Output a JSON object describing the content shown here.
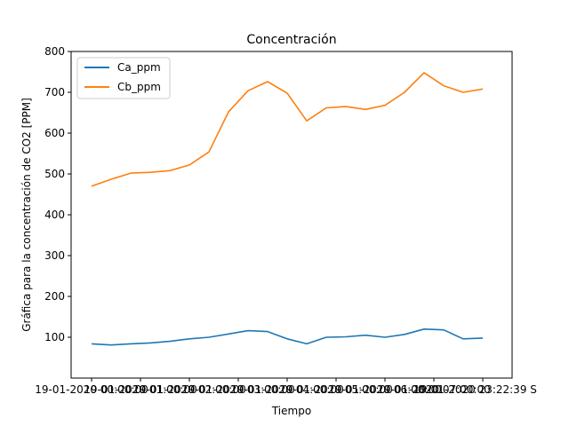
{
  "chart_data": {
    "type": "line",
    "title": "Concentración",
    "xlabel": "Tiempo",
    "ylabel": "Gráfica para la concentración de CO2 [PPM]",
    "ylim": [
      0,
      800
    ],
    "yticks": [
      100,
      200,
      300,
      400,
      500,
      600,
      700,
      800
    ],
    "xticks": [
      "19-01-2020 00:00:00",
      "19-01-2020 01:00:00",
      "19-01-2020 02:00:00",
      "19-01-2020 03:00:00",
      "19-01-2020 04:00:00",
      "19-01-2020 05:00:00",
      "19-01-2020 06:00:00",
      "19-01-2020 07:00:00",
      "19-01-2020 23:22:39 S"
    ],
    "legend": {
      "placement": "top-left"
    },
    "x_index": [
      0,
      0.05,
      0.1,
      0.15,
      0.2,
      0.25,
      0.3,
      0.35,
      0.4,
      0.45,
      0.5,
      0.55,
      0.6,
      0.65,
      0.7,
      0.75,
      0.8,
      0.85,
      0.9,
      0.95,
      1.0
    ],
    "series": [
      {
        "name": "Ca_ppm",
        "color": "#1f77b4",
        "values": [
          84,
          81,
          84,
          86,
          90,
          96,
          100,
          108,
          116,
          114,
          96,
          84,
          100,
          101,
          105,
          100,
          107,
          120,
          118,
          96,
          98
        ]
      },
      {
        "name": "Cb_ppm",
        "color": "#ff7f0e",
        "values": [
          470,
          487,
          502,
          504,
          508,
          522,
          554,
          652,
          704,
          726,
          698,
          630,
          662,
          665,
          658,
          668,
          700,
          748,
          716,
          700,
          708
        ]
      }
    ]
  }
}
